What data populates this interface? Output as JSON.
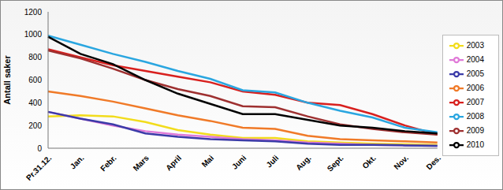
{
  "chart_data": {
    "type": "line",
    "y_label": "Antall saker",
    "categories": [
      "Pr.31.12.",
      "Jan.",
      "Febr.",
      "Mars",
      "April",
      "Mai",
      "Juni",
      "Juli",
      "Aug.",
      "Sept.",
      "Okt.",
      "Nov.",
      "Des."
    ],
    "ylim": [
      0,
      1200
    ],
    "yticks": [
      0,
      200,
      400,
      600,
      800,
      1000,
      1200
    ],
    "grid": false,
    "legend": "right",
    "series": [
      {
        "name": "2003",
        "color": "#f2dc1c",
        "values": [
          280,
          290,
          280,
          230,
          160,
          120,
          90,
          90,
          60,
          50,
          40,
          35,
          30
        ]
      },
      {
        "name": "2004",
        "color": "#e07ad8",
        "values": [
          320,
          260,
          200,
          150,
          120,
          100,
          80,
          70,
          50,
          40,
          30,
          25,
          20
        ]
      },
      {
        "name": "2005",
        "color": "#3b3ba8",
        "values": [
          320,
          260,
          210,
          130,
          100,
          80,
          70,
          60,
          40,
          30,
          30,
          25,
          20
        ]
      },
      {
        "name": "2006",
        "color": "#f07a28",
        "values": [
          500,
          460,
          410,
          350,
          290,
          240,
          180,
          170,
          110,
          80,
          70,
          60,
          50
        ]
      },
      {
        "name": "2007",
        "color": "#d8201e",
        "values": [
          870,
          800,
          730,
          680,
          630,
          580,
          500,
          470,
          400,
          380,
          300,
          200,
          120
        ]
      },
      {
        "name": "2008",
        "color": "#2aa6e0",
        "values": [
          990,
          910,
          830,
          760,
          680,
          610,
          510,
          490,
          400,
          330,
          270,
          180,
          140
        ]
      },
      {
        "name": "2009",
        "color": "#9e3030",
        "values": [
          860,
          790,
          700,
          600,
          520,
          460,
          370,
          360,
          280,
          210,
          170,
          140,
          120
        ]
      },
      {
        "name": "2010",
        "color": "#000000",
        "values": [
          980,
          830,
          740,
          600,
          480,
          390,
          300,
          300,
          250,
          200,
          180,
          150,
          130
        ]
      }
    ]
  }
}
